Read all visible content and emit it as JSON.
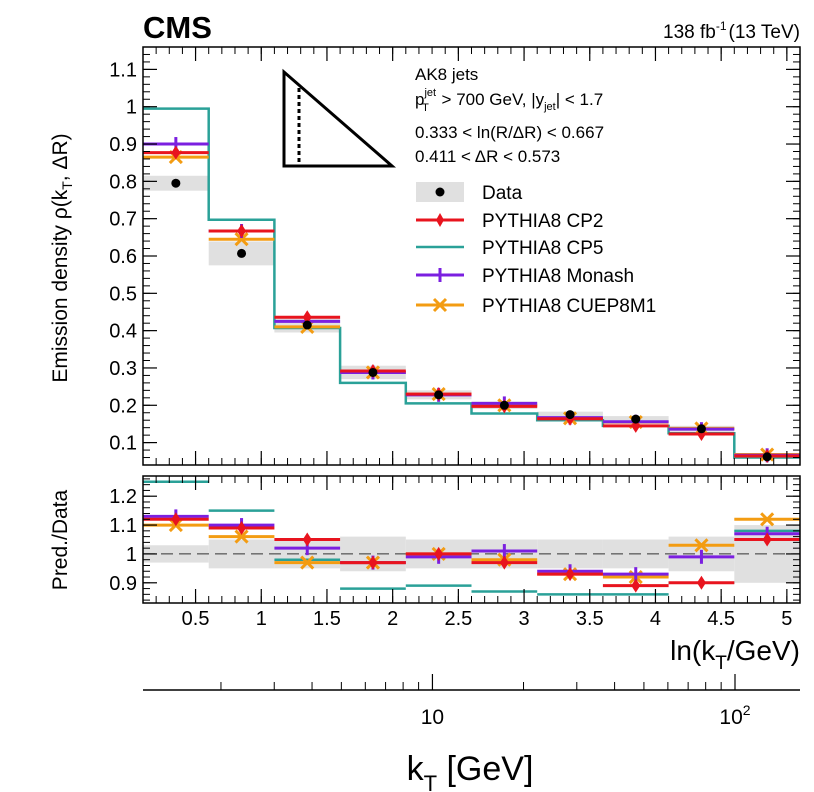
{
  "header": {
    "experiment": "CMS",
    "lumi": "138 fb",
    "lumi_exp": "-1",
    "energy": "(13 TeV)"
  },
  "annotations": {
    "jets": "AK8 jets",
    "cut1_p": "p",
    "cut1_psup": "jet",
    "cut1_psub": "T",
    "cut1_mid": " > 700 GeV, |y",
    "cut1_ysub": "jet",
    "cut1_end": "| < 1.7",
    "cut2": "0.333 < ln(R/ΔR) < 0.667",
    "cut3": "0.411 < ΔR < 0.573"
  },
  "axes": {
    "ylabel_main": "Emission density ρ(k",
    "ylabel_main_sub": "T",
    "ylabel_main_end": ", ΔR)",
    "ylabel_ratio": "Pred./Data",
    "xlabel_ln_pre": "ln(k",
    "xlabel_ln_sub": "T",
    "xlabel_ln_end": "/GeV)",
    "xlabel_kt_pre": "k",
    "xlabel_kt_sub": "T",
    "xlabel_kt_end": " [GeV]",
    "log_ticks": [
      {
        "value": 10,
        "base": "10",
        "exp": ""
      },
      {
        "value": 100,
        "base": "10",
        "exp": "2"
      }
    ]
  },
  "legend": [
    {
      "label": "Data",
      "color": "#000000",
      "style": "data"
    },
    {
      "label": "PYTHIA8 CP2",
      "color": "#e8141e",
      "style": "diamond"
    },
    {
      "label": "PYTHIA8 CP5",
      "color": "#2aa198",
      "style": "line"
    },
    {
      "label": "PYTHIA8 Monash",
      "color": "#7b1fe0",
      "style": "plus"
    },
    {
      "label": "PYTHIA8 CUEP8M1",
      "color": "#f39c12",
      "style": "cross"
    }
  ],
  "chart_data": {
    "type": "histogram",
    "edges": [
      0.1,
      0.6,
      1.1,
      1.6,
      2.1,
      2.6,
      3.1,
      3.6,
      4.1,
      4.6,
      5.1
    ],
    "main": {
      "ylim": [
        0.04,
        1.16
      ],
      "yticks": [
        0.1,
        0.2,
        0.3,
        0.4,
        0.5,
        0.6,
        0.7,
        0.8,
        0.9,
        1.0,
        1.1
      ],
      "yticklabels": [
        "0.1",
        "0.2",
        "0.3",
        "0.4",
        "0.5",
        "0.6",
        "0.7",
        "0.8",
        "0.9",
        "1",
        "1.1"
      ],
      "data": [
        0.795,
        0.607,
        0.415,
        0.288,
        0.228,
        0.2,
        0.175,
        0.163,
        0.137,
        0.062
      ],
      "data_unc": [
        0.02,
        0.032,
        0.02,
        0.018,
        0.012,
        0.01,
        0.008,
        0.008,
        0.008,
        0.005
      ],
      "series": [
        {
          "name": "PYTHIA8 CP2",
          "values": [
            0.877,
            0.667,
            0.436,
            0.292,
            0.23,
            0.197,
            0.164,
            0.145,
            0.123,
            0.064
          ]
        },
        {
          "name": "PYTHIA8 CP5",
          "values": [
            0.995,
            0.697,
            0.407,
            0.26,
            0.205,
            0.178,
            0.16,
            0.145,
            0.125,
            0.06
          ]
        },
        {
          "name": "PYTHIA8 Monash",
          "values": [
            0.9,
            0.667,
            0.425,
            0.288,
            0.228,
            0.205,
            0.167,
            0.156,
            0.136,
            0.066
          ]
        },
        {
          "name": "PYTHIA8 CUEP8M1",
          "values": [
            0.865,
            0.645,
            0.41,
            0.288,
            0.23,
            0.2,
            0.165,
            0.155,
            0.138,
            0.068
          ]
        }
      ]
    },
    "ratio": {
      "ylim": [
        0.83,
        1.27
      ],
      "yticks": [
        0.9,
        1.0,
        1.1,
        1.2
      ],
      "yticklabels": [
        "0.9",
        "1",
        "1.1",
        "1.2"
      ],
      "band": [
        0.03,
        0.05,
        0.05,
        0.06,
        0.05,
        0.05,
        0.05,
        0.05,
        0.06,
        0.1
      ],
      "series": [
        {
          "name": "PYTHIA8 CP2",
          "values": [
            1.12,
            1.09,
            1.05,
            0.97,
            1.0,
            0.97,
            0.93,
            0.89,
            0.9,
            1.05
          ]
        },
        {
          "name": "PYTHIA8 CP5",
          "values": [
            1.25,
            1.15,
            0.98,
            0.88,
            0.89,
            0.87,
            0.86,
            0.86,
            0.9,
            1.08
          ]
        },
        {
          "name": "PYTHIA8 Monash",
          "values": [
            1.13,
            1.1,
            1.02,
            0.97,
            0.99,
            1.01,
            0.94,
            0.93,
            0.99,
            1.07
          ]
        },
        {
          "name": "PYTHIA8 CUEP8M1",
          "values": [
            1.1,
            1.06,
            0.97,
            0.97,
            1.0,
            0.98,
            0.93,
            0.92,
            1.03,
            1.12
          ]
        }
      ]
    },
    "xticks": [
      0.5,
      1,
      1.5,
      2,
      2.5,
      3,
      3.5,
      4,
      4.5,
      5
    ],
    "xticklabels": [
      "0.5",
      "1",
      "1.5",
      "2",
      "2.5",
      "3",
      "3.5",
      "4",
      "4.5",
      "5"
    ],
    "kt_axis_range_GeV": [
      1.105,
      164.0
    ]
  }
}
